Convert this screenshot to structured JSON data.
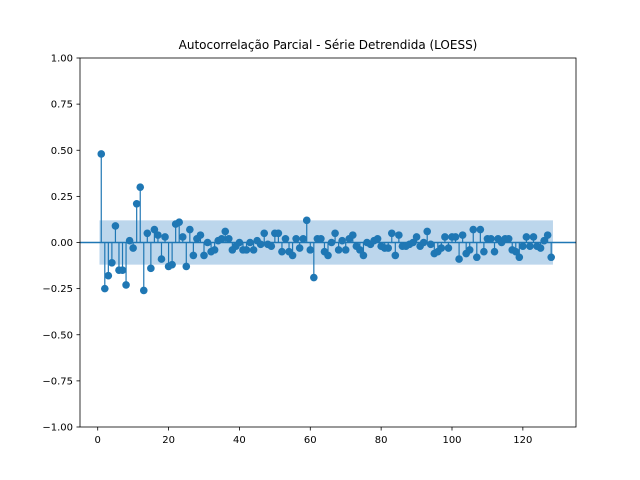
{
  "chart_data": {
    "type": "scatter",
    "title": "Autocorrelação Parcial - Série Detrendida (LOESS)",
    "xlabel": "",
    "ylabel": "",
    "xlim": [
      -5,
      135
    ],
    "ylim": [
      -1.0,
      1.0
    ],
    "x_ticks": [
      0,
      20,
      40,
      60,
      80,
      100,
      120
    ],
    "y_ticks": [
      -1.0,
      -0.75,
      -0.5,
      -0.25,
      0.0,
      0.25,
      0.5,
      0.75,
      1.0
    ],
    "y_tick_labels": [
      "−1.00",
      "−0.75",
      "−0.50",
      "−0.25",
      "0.00",
      "0.25",
      "0.50",
      "0.75",
      "1.00"
    ],
    "x_tick_labels": [
      "0",
      "20",
      "40",
      "60",
      "80",
      "100",
      "120"
    ],
    "confidence_band": [
      -0.12,
      0.12
    ],
    "grid": false,
    "legend": "none",
    "colors": {
      "stem": "#1f77b4",
      "band": "#a6c8e5",
      "zero_line": "#1f77b4"
    },
    "series": [
      {
        "x": [
          1,
          2,
          3,
          4,
          5,
          6,
          7,
          8,
          9,
          10,
          11,
          12,
          13,
          14,
          15,
          16,
          17,
          18,
          19,
          20,
          21,
          22,
          23,
          24,
          25,
          26,
          27,
          28,
          29,
          30,
          31,
          32,
          33,
          34,
          35,
          36,
          37,
          38,
          39,
          40,
          41,
          42,
          43,
          44,
          45,
          46,
          47,
          48,
          49,
          50,
          51,
          52,
          53,
          54,
          55,
          56,
          57,
          58,
          59,
          60,
          61,
          62,
          63,
          64,
          65,
          66,
          67,
          68,
          69,
          70,
          71,
          72,
          73,
          74,
          75,
          76,
          77,
          78,
          79,
          80,
          81,
          82,
          83,
          84,
          85,
          86,
          87,
          88,
          89,
          90,
          91,
          92,
          93,
          94,
          95,
          96,
          97,
          98,
          99,
          100,
          101,
          102,
          103,
          104,
          105,
          106,
          107,
          108,
          109,
          110,
          111,
          112,
          113,
          114,
          115,
          116,
          117,
          118,
          119,
          120,
          121,
          122,
          123,
          124,
          125,
          126,
          127,
          128
        ],
        "values": [
          0.48,
          -0.25,
          -0.18,
          -0.11,
          0.09,
          -0.15,
          -0.15,
          -0.23,
          0.01,
          -0.03,
          0.21,
          0.3,
          -0.26,
          0.05,
          -0.14,
          0.07,
          0.04,
          -0.09,
          0.03,
          -0.13,
          -0.12,
          0.1,
          0.11,
          0.03,
          -0.13,
          0.07,
          -0.07,
          0.02,
          0.04,
          -0.07,
          0.0,
          -0.05,
          -0.04,
          0.01,
          0.02,
          0.06,
          0.02,
          -0.04,
          -0.02,
          0.0,
          -0.04,
          -0.04,
          0.0,
          -0.04,
          0.01,
          -0.01,
          0.05,
          -0.01,
          -0.02,
          0.05,
          0.05,
          -0.05,
          0.02,
          -0.05,
          -0.07,
          0.02,
          -0.03,
          0.02,
          0.12,
          -0.04,
          -0.19,
          0.02,
          0.02,
          -0.05,
          -0.07,
          0.0,
          0.05,
          -0.04,
          0.01,
          -0.04,
          0.02,
          0.04,
          -0.02,
          -0.04,
          -0.07,
          0.0,
          -0.01,
          0.01,
          0.02,
          -0.02,
          -0.03,
          -0.03,
          0.05,
          -0.07,
          0.04,
          -0.02,
          -0.02,
          -0.01,
          0.0,
          0.03,
          -0.02,
          0.0,
          0.06,
          -0.01,
          -0.06,
          -0.05,
          -0.03,
          0.03,
          -0.03,
          0.03,
          0.03,
          -0.09,
          0.04,
          -0.06,
          -0.04,
          0.07,
          -0.08,
          0.07,
          -0.05,
          0.02,
          0.02,
          -0.05,
          0.02,
          0.0,
          0.02,
          0.02,
          -0.04,
          -0.05,
          -0.08,
          -0.02,
          0.03,
          -0.02,
          0.03,
          -0.02,
          -0.03,
          0.01,
          0.04,
          -0.08
        ]
      }
    ]
  }
}
